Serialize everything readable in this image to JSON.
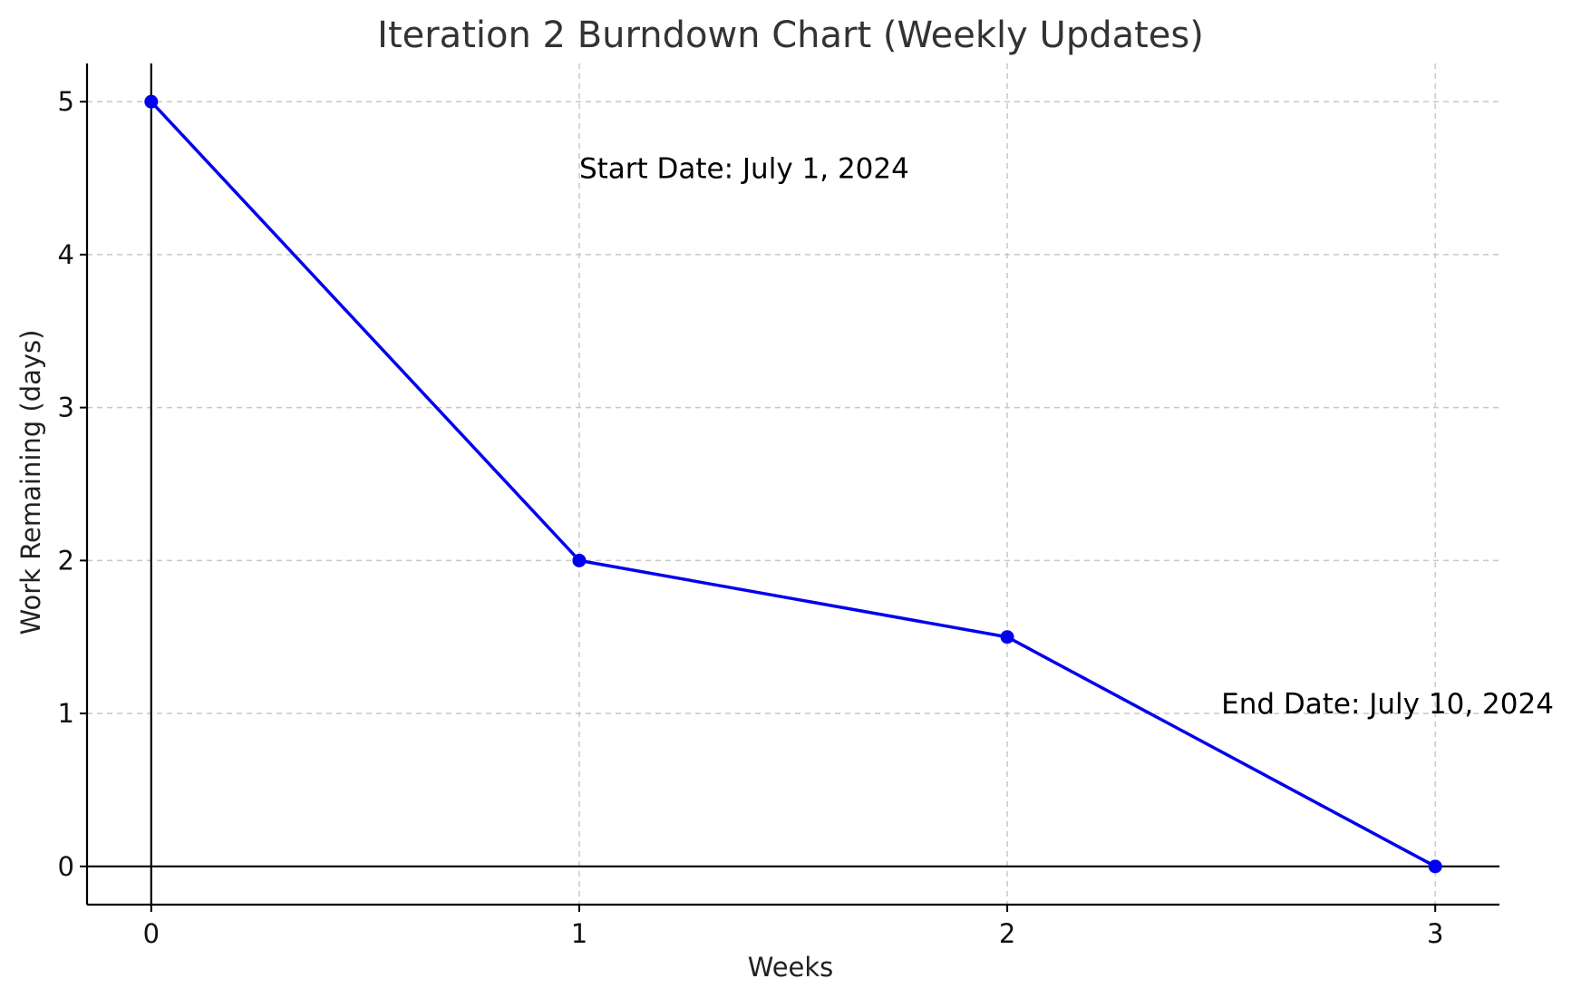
{
  "chart_data": {
    "type": "line",
    "title": "Iteration 2 Burndown Chart (Weekly Updates)",
    "xlabel": "Weeks",
    "ylabel": "Work Remaining (days)",
    "x": [
      0,
      1,
      2,
      3
    ],
    "series": [
      {
        "values": [
          5,
          2,
          1.5,
          0
        ],
        "color": "#0000ee"
      }
    ],
    "xlim": [
      -0.15,
      3.15
    ],
    "ylim": [
      -0.25,
      5.25
    ],
    "xticks": [
      "0",
      "1",
      "2",
      "3"
    ],
    "yticks": [
      "0",
      "1",
      "2",
      "3",
      "4",
      "5"
    ],
    "grid": true,
    "annotations": [
      {
        "text": "Start Date: July 1, 2024",
        "x": 1,
        "y": 4.5
      },
      {
        "text": "End Date: July 10, 2024",
        "x": 2.5,
        "y": 1
      }
    ]
  }
}
